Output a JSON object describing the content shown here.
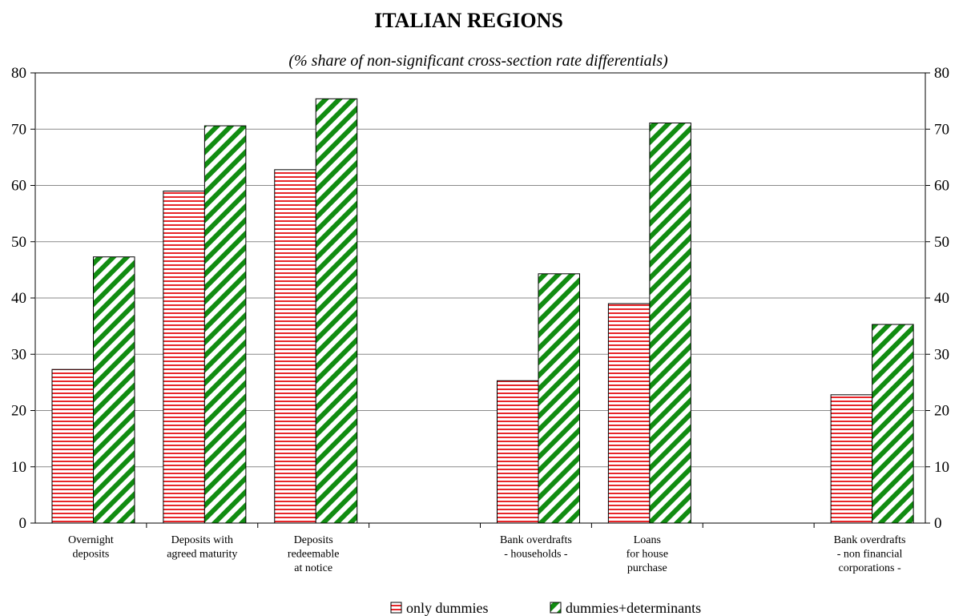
{
  "chart_data": {
    "type": "bar",
    "title": "ITALIAN REGIONS",
    "subtitle": "(% share of non-significant cross-section rate differentials)",
    "xlabel": "",
    "ylabel": "",
    "ylim": [
      0,
      80
    ],
    "yticks": [
      "0",
      "10",
      "20",
      "30",
      "40",
      "50",
      "60",
      "70",
      "80"
    ],
    "right_axis": true,
    "grid": "horizontal",
    "legend_position": "bottom-center",
    "categories": [
      [
        "Overnight",
        "deposits"
      ],
      [
        "Deposits with",
        "agreed maturity"
      ],
      [
        "Deposits",
        "redeemable",
        "at notice"
      ],
      [],
      [
        "Bank overdrafts",
        "- households -"
      ],
      [
        "Loans",
        "for house",
        "purchase"
      ],
      [],
      [
        "Bank overdrafts",
        "- non financial",
        "corporations -"
      ]
    ],
    "series": [
      {
        "name": "only dummies",
        "pattern": "horizontal-stripes",
        "color": "#e8262a",
        "values": [
          27.3,
          59.0,
          62.8,
          null,
          25.3,
          39.0,
          null,
          22.8
        ]
      },
      {
        "name": "dummies+determinants",
        "pattern": "diagonal-stripes",
        "color": "#118c11",
        "values": [
          47.3,
          70.6,
          75.4,
          null,
          44.3,
          71.1,
          null,
          35.3
        ]
      }
    ]
  }
}
